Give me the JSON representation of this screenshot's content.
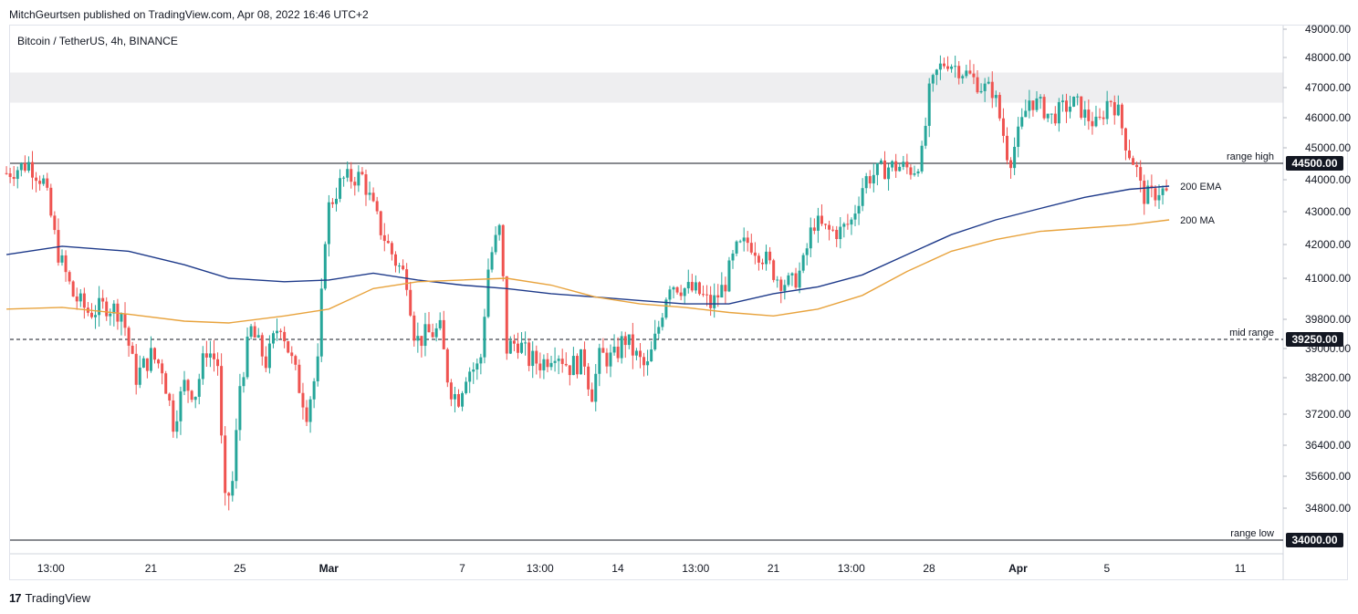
{
  "header": {
    "published": "MitchGeurtsen published on TradingView.com, Apr 08, 2022 16:46 UTC+2"
  },
  "symbol_title": "Bitcoin / TetherUS, 4h, BINANCE",
  "footer": {
    "brand": "TradingView",
    "logo": "17"
  },
  "colors": {
    "up": "#26a69a",
    "down": "#ef5350",
    "ema": "#1e3a8a",
    "ma": "#e8a33d",
    "level_line": "#131722",
    "zone": "#eeeef0"
  },
  "chart_data": {
    "type": "candlestick",
    "title": "Bitcoin / TetherUS, 4h, BINANCE",
    "y_axis_ticks": [
      49000,
      48000,
      47000,
      46000,
      45000,
      44000,
      43000,
      42000,
      41000,
      39800,
      39000,
      38200,
      37200,
      36400,
      35600,
      34800
    ],
    "y_axis_tick_labels": [
      "49000.00",
      "48000.00",
      "47000.00",
      "46000.00",
      "45000.00",
      "44000.00",
      "43000.00",
      "42000.00",
      "41000.00",
      "39800.00",
      "39000.00",
      "38200.00",
      "37200.00",
      "36400.00",
      "35600.00",
      "34800.00"
    ],
    "x_axis_labels": [
      {
        "label": "13:00",
        "d": -7.5
      },
      {
        "label": "21",
        "d": -3
      },
      {
        "label": "25",
        "d": 1
      },
      {
        "label": "Mar",
        "d": 5
      },
      {
        "label": "7",
        "d": 11
      },
      {
        "label": "13:00",
        "d": 14.5
      },
      {
        "label": "14",
        "d": 18
      },
      {
        "label": "13:00",
        "d": 21.5
      },
      {
        "label": "21",
        "d": 25
      },
      {
        "label": "13:00",
        "d": 28.5
      },
      {
        "label": "28",
        "d": 32
      },
      {
        "label": "Apr",
        "d": 36
      },
      {
        "label": "5",
        "d": 40
      },
      {
        "label": "11",
        "d": 46
      }
    ],
    "levels": [
      {
        "label": "range high",
        "value": 44500,
        "tag": "44500.00",
        "style": "solid"
      },
      {
        "label": "mid range",
        "value": 39250,
        "tag": "39250.00",
        "style": "dashed"
      },
      {
        "label": "range low",
        "value": 34000,
        "tag": "34000.00",
        "style": "solid"
      }
    ],
    "zone": {
      "from": 46500,
      "to": 47500
    },
    "indicators": [
      {
        "name": "200 EMA",
        "color": "#1e3a8a",
        "values": [
          [
            -9.5,
            41700
          ],
          [
            -7,
            41950
          ],
          [
            -4,
            41800
          ],
          [
            -1.5,
            41400
          ],
          [
            0.5,
            41000
          ],
          [
            3,
            40900
          ],
          [
            5,
            40950
          ],
          [
            7,
            41150
          ],
          [
            9,
            40950
          ],
          [
            11,
            40800
          ],
          [
            13,
            40700
          ],
          [
            15,
            40550
          ],
          [
            17,
            40450
          ],
          [
            19,
            40350
          ],
          [
            21,
            40250
          ],
          [
            23,
            40250
          ],
          [
            25,
            40550
          ],
          [
            27,
            40750
          ],
          [
            29,
            41100
          ],
          [
            31,
            41700
          ],
          [
            33,
            42300
          ],
          [
            35,
            42750
          ],
          [
            37,
            43100
          ],
          [
            39,
            43450
          ],
          [
            41,
            43700
          ],
          [
            42.8,
            43800
          ]
        ]
      },
      {
        "name": "200 MA",
        "color": "#e8a33d",
        "values": [
          [
            -9.5,
            40100
          ],
          [
            -7,
            40150
          ],
          [
            -4,
            39950
          ],
          [
            -1.5,
            39750
          ],
          [
            0.5,
            39700
          ],
          [
            3,
            39900
          ],
          [
            5,
            40100
          ],
          [
            7,
            40700
          ],
          [
            9,
            40900
          ],
          [
            11,
            40950
          ],
          [
            13,
            41000
          ],
          [
            15,
            40800
          ],
          [
            17,
            40450
          ],
          [
            19,
            40250
          ],
          [
            21,
            40150
          ],
          [
            23,
            40000
          ],
          [
            25,
            39900
          ],
          [
            27,
            40100
          ],
          [
            29,
            40500
          ],
          [
            31,
            41200
          ],
          [
            33,
            41800
          ],
          [
            35,
            42150
          ],
          [
            37,
            42400
          ],
          [
            39,
            42500
          ],
          [
            41,
            42600
          ],
          [
            42.8,
            42750
          ]
        ]
      }
    ],
    "ohlc_anchor_closes": [
      [
        -9.5,
        44200
      ],
      [
        -8.5,
        44500
      ],
      [
        -7.8,
        43900
      ],
      [
        -7.2,
        41800
      ],
      [
        -6.5,
        40500
      ],
      [
        -5.8,
        40000
      ],
      [
        -5,
        40200
      ],
      [
        -4.3,
        40000
      ],
      [
        -3.7,
        38200
      ],
      [
        -3,
        38800
      ],
      [
        -2.5,
        38500
      ],
      [
        -2,
        37000
      ],
      [
        -1.5,
        38000
      ],
      [
        -1,
        37800
      ],
      [
        -0.5,
        39000
      ],
      [
        0,
        38600
      ],
      [
        0.3,
        34800
      ],
      [
        0.7,
        35500
      ],
      [
        1,
        38000
      ],
      [
        1.5,
        39500
      ],
      [
        2.2,
        38600
      ],
      [
        2.8,
        39800
      ],
      [
        3.4,
        38500
      ],
      [
        4,
        37300
      ],
      [
        4.5,
        38500
      ],
      [
        4.9,
        43000
      ],
      [
        5.6,
        44000
      ],
      [
        6.5,
        44100
      ],
      [
        7.3,
        42500
      ],
      [
        8,
        41500
      ],
      [
        8.5,
        41000
      ],
      [
        8.9,
        39200
      ],
      [
        9.5,
        39400
      ],
      [
        10,
        39500
      ],
      [
        10.4,
        38000
      ],
      [
        10.8,
        37600
      ],
      [
        11.2,
        38400
      ],
      [
        11.8,
        38500
      ],
      [
        12.2,
        41500
      ],
      [
        12.7,
        42500
      ],
      [
        13,
        39000
      ],
      [
        13.5,
        39200
      ],
      [
        14,
        38700
      ],
      [
        14.6,
        38600
      ],
      [
        15.2,
        39000
      ],
      [
        15.8,
        38500
      ],
      [
        16.5,
        38700
      ],
      [
        16.8,
        37700
      ],
      [
        17.2,
        38800
      ],
      [
        17.8,
        38700
      ],
      [
        18.3,
        39300
      ],
      [
        18.8,
        38800
      ],
      [
        19.3,
        38400
      ],
      [
        19.8,
        39500
      ],
      [
        20.3,
        40900
      ],
      [
        21,
        40700
      ],
      [
        21.6,
        40600
      ],
      [
        22.2,
        40200
      ],
      [
        22.8,
        40800
      ],
      [
        23.3,
        41800
      ],
      [
        23.9,
        42100
      ],
      [
        24.6,
        41600
      ],
      [
        25.2,
        41000
      ],
      [
        25.8,
        40800
      ],
      [
        26.3,
        41300
      ],
      [
        26.8,
        42700
      ],
      [
        27.4,
        42400
      ],
      [
        28,
        42400
      ],
      [
        28.5,
        42700
      ],
      [
        29.1,
        44000
      ],
      [
        29.6,
        44200
      ],
      [
        30.2,
        44400
      ],
      [
        30.7,
        44400
      ],
      [
        31.3,
        44300
      ],
      [
        31.7,
        44800
      ],
      [
        32,
        46800
      ],
      [
        32.4,
        47600
      ],
      [
        32.8,
        47900
      ],
      [
        33.2,
        47700
      ],
      [
        33.8,
        47400
      ],
      [
        34.4,
        47000
      ],
      [
        34.9,
        46900
      ],
      [
        35.3,
        45600
      ],
      [
        35.6,
        44500
      ],
      [
        36,
        45400
      ],
      [
        36.5,
        46600
      ],
      [
        37,
        46400
      ],
      [
        37.5,
        46000
      ],
      [
        38,
        46300
      ],
      [
        38.6,
        46500
      ],
      [
        39,
        46100
      ],
      [
        39.6,
        45700
      ],
      [
        40.1,
        46700
      ],
      [
        40.5,
        46200
      ],
      [
        40.9,
        45000
      ],
      [
        41.3,
        44400
      ],
      [
        41.6,
        43500
      ],
      [
        42,
        43500
      ],
      [
        42.4,
        43700
      ],
      [
        42.8,
        43500
      ]
    ]
  }
}
